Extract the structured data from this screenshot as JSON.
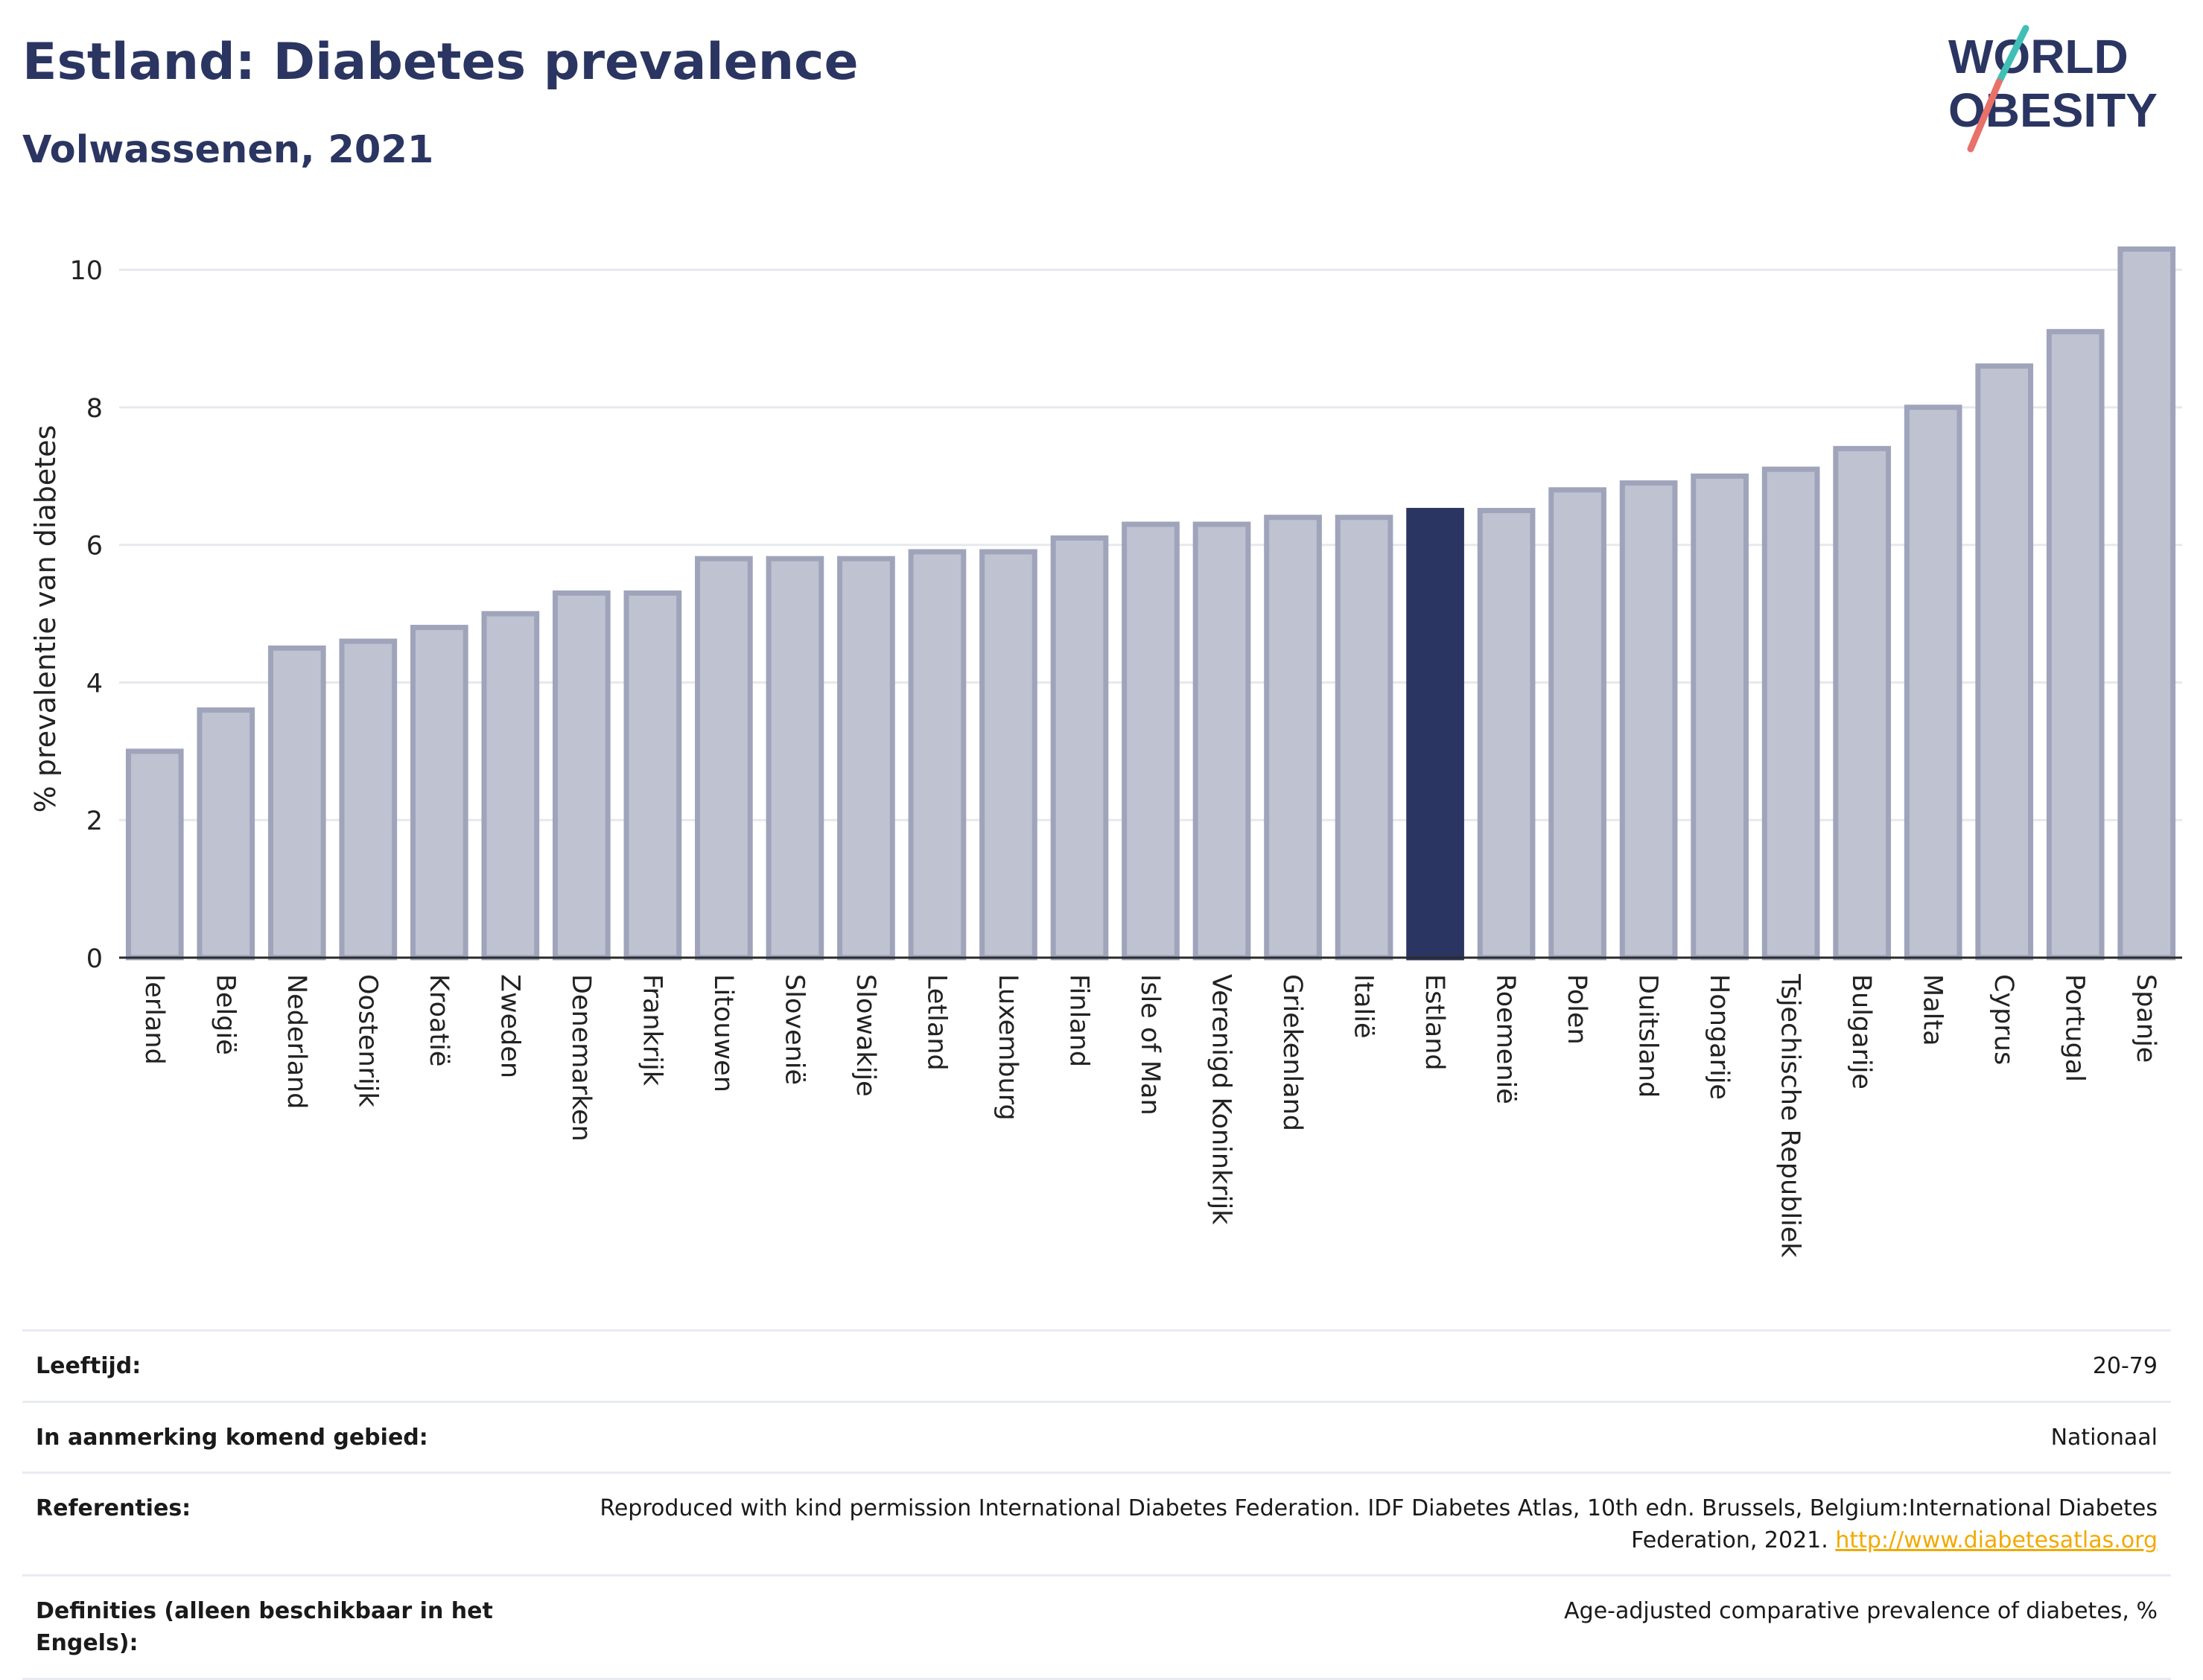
{
  "header": {
    "title": "Estland: Diabetes prevalence",
    "subtitle": "Volwassenen, 2021"
  },
  "logo": {
    "line1": "WORLD",
    "line2": "OBESITY",
    "text_color": "#2b3562",
    "slash_top_color": "#3fbfb6",
    "slash_bottom_color": "#e8716a"
  },
  "colors": {
    "bar_fill": "#bfc2d0",
    "bar_border": "#9fa4bb",
    "highlight_fill": "#2b3562",
    "text_dark": "#2b3562"
  },
  "chart_data": {
    "type": "bar",
    "title": "Estland: Diabetes prevalence",
    "subtitle": "Volwassenen, 2021",
    "xlabel": "",
    "ylabel": "% prevalentie van diabetes",
    "ylim": [
      0,
      10.5
    ],
    "yticks": [
      0,
      2,
      4,
      6,
      8,
      10
    ],
    "grid": true,
    "highlight": "Estland",
    "categories": [
      "Ierland",
      "België",
      "Nederland",
      "Oostenrijk",
      "Kroatië",
      "Zweden",
      "Denemarken",
      "Frankrijk",
      "Litouwen",
      "Slovenië",
      "Slowakije",
      "Letland",
      "Luxemburg",
      "Finland",
      "Isle of Man",
      "Verenigd Koninkrijk",
      "Griekenland",
      "Italië",
      "Estland",
      "Roemenië",
      "Polen",
      "Duitsland",
      "Hongarije",
      "Tsjechische Republiek",
      "Bulgarije",
      "Malta",
      "Cyprus",
      "Portugal",
      "Spanje"
    ],
    "values": [
      3.0,
      3.6,
      4.5,
      4.6,
      4.8,
      5.0,
      5.3,
      5.3,
      5.8,
      5.8,
      5.8,
      5.9,
      5.9,
      6.1,
      6.3,
      6.3,
      6.4,
      6.4,
      6.5,
      6.5,
      6.8,
      6.9,
      7.0,
      7.1,
      7.4,
      8.0,
      8.6,
      9.1,
      10.3
    ]
  },
  "info": [
    {
      "label": "Leeftijd:",
      "value": "20-79"
    },
    {
      "label": "In aanmerking komend gebied:",
      "value": "Nationaal"
    },
    {
      "label": "Referenties:",
      "value": "Reproduced with kind permission International Diabetes Federation.  IDF Diabetes Atlas, 10th edn. Brussels, Belgium:International Diabetes Federation, 2021. ",
      "link": "http://www.diabetesatlas.org"
    },
    {
      "label": "Definities (alleen beschikbaar in het Engels):",
      "value": "Age-adjusted comparative prevalence of diabetes, %"
    }
  ]
}
